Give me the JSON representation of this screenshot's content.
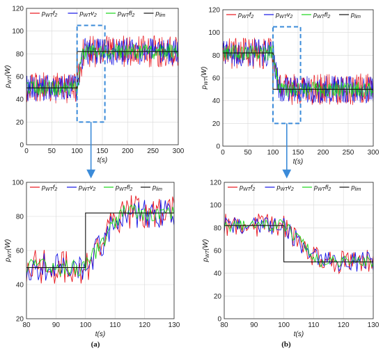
{
  "colors": {
    "f": "#e8141c",
    "v": "#1414e6",
    "fl": "#19d419",
    "lim": "#111111",
    "zoom_box": "#3b8bd9",
    "arrow": "#3b8bd9",
    "grid": "#d8d8d8"
  },
  "panels": [
    {
      "id": "a",
      "caption": "(a)",
      "top": {
        "xlabel": "t(s)",
        "ylabel": "p_WT(W)",
        "xlim": [
          0,
          300
        ],
        "ylim": [
          0,
          120
        ],
        "xticks": [
          "0",
          "50",
          "100",
          "150",
          "200",
          "250",
          "300"
        ],
        "yticks": [
          "0",
          "20",
          "40",
          "60",
          "80",
          "100",
          "120"
        ],
        "zoom_box": {
          "x": [
            100,
            155
          ],
          "y": [
            20,
            105
          ]
        }
      },
      "bottom": {
        "xlabel": "t(s)",
        "ylabel": "p_WT(W)",
        "xlim": [
          80,
          130
        ],
        "ylim": [
          20,
          100
        ],
        "xticks": [
          "80",
          "90",
          "100",
          "110",
          "120",
          "130"
        ],
        "yticks": [
          "20",
          "40",
          "60",
          "80",
          "100"
        ]
      }
    },
    {
      "id": "b",
      "caption": "(b)",
      "top": {
        "xlabel": "t(s)",
        "ylabel": "p_WT(W)",
        "xlim": [
          0,
          300
        ],
        "ylim": [
          0,
          120
        ],
        "xticks": [
          "0",
          "50",
          "100",
          "150",
          "200",
          "250",
          "300"
        ],
        "yticks": [
          "0",
          "20",
          "40",
          "60",
          "80",
          "100",
          "120"
        ],
        "zoom_box": {
          "x": [
            100,
            155
          ],
          "y": [
            20,
            105
          ]
        }
      },
      "bottom": {
        "xlabel": "t(s)",
        "ylabel": "p_WT(W)",
        "xlim": [
          80,
          130
        ],
        "ylim": [
          0,
          120
        ],
        "xticks": [
          "80",
          "90",
          "100",
          "110",
          "120",
          "130"
        ],
        "yticks": [
          "0",
          "20",
          "40",
          "60",
          "80",
          "100",
          "120"
        ]
      }
    }
  ],
  "legend": [
    {
      "key": "f",
      "base": "p",
      "sub": "WT",
      "sup": "f",
      "sub2": "2"
    },
    {
      "key": "v",
      "base": "p",
      "sub": "WT",
      "sup": "v",
      "sub2": "2"
    },
    {
      "key": "fl",
      "base": "p",
      "sub": "WT",
      "sup": "fl",
      "sub2": "2"
    },
    {
      "key": "lim",
      "base": "p",
      "sub": "lim",
      "sup": "",
      "sub2": ""
    }
  ],
  "chart_data": [
    {
      "panel": "a-top",
      "type": "line",
      "x_range": [
        0,
        300
      ],
      "series": [
        {
          "name": "pWTf2",
          "mean_before": 50,
          "mean_after": 82,
          "step_time": 100,
          "noise": 14
        },
        {
          "name": "pWTv2",
          "mean_before": 50,
          "mean_after": 82,
          "step_time": 100,
          "noise": 12
        },
        {
          "name": "pWTfl2",
          "mean_before": 50,
          "mean_after": 82,
          "step_time": 100,
          "noise": 7
        },
        {
          "name": "plim",
          "x": [
            0,
            100,
            100,
            300
          ],
          "y": [
            50,
            50,
            82,
            82
          ]
        }
      ]
    },
    {
      "panel": "a-bottom",
      "type": "line",
      "x_range": [
        80,
        130
      ],
      "series": [
        {
          "name": "pWTf2",
          "mean_before": 50,
          "mean_after": 82,
          "step_time": 100,
          "noise": 14
        },
        {
          "name": "pWTv2",
          "mean_before": 50,
          "mean_after": 82,
          "step_time": 100,
          "noise": 12
        },
        {
          "name": "pWTfl2",
          "mean_before": 50,
          "mean_after": 82,
          "step_time": 100,
          "noise": 7
        },
        {
          "name": "plim",
          "x": [
            80,
            100,
            100,
            130
          ],
          "y": [
            50,
            50,
            82,
            82
          ]
        }
      ]
    },
    {
      "panel": "b-top",
      "type": "line",
      "x_range": [
        0,
        300
      ],
      "series": [
        {
          "name": "pWTf2",
          "mean_before": 82,
          "mean_after": 50,
          "step_time": 100,
          "noise": 14
        },
        {
          "name": "pWTv2",
          "mean_before": 82,
          "mean_after": 50,
          "step_time": 100,
          "noise": 12
        },
        {
          "name": "pWTfl2",
          "mean_before": 82,
          "mean_after": 50,
          "step_time": 100,
          "noise": 7
        },
        {
          "name": "plim",
          "x": [
            0,
            100,
            100,
            300
          ],
          "y": [
            82,
            82,
            50,
            50
          ]
        }
      ]
    },
    {
      "panel": "b-bottom",
      "type": "line",
      "x_range": [
        80,
        130
      ],
      "series": [
        {
          "name": "pWTf2",
          "mean_before": 82,
          "mean_after": 50,
          "step_time": 100,
          "noise": 14
        },
        {
          "name": "pWTv2",
          "mean_before": 82,
          "mean_after": 50,
          "step_time": 100,
          "noise": 12
        },
        {
          "name": "pWTfl2",
          "mean_before": 82,
          "mean_after": 50,
          "step_time": 100,
          "noise": 7
        },
        {
          "name": "plim",
          "x": [
            80,
            100,
            100,
            130
          ],
          "y": [
            82,
            82,
            50,
            50
          ]
        }
      ]
    }
  ]
}
